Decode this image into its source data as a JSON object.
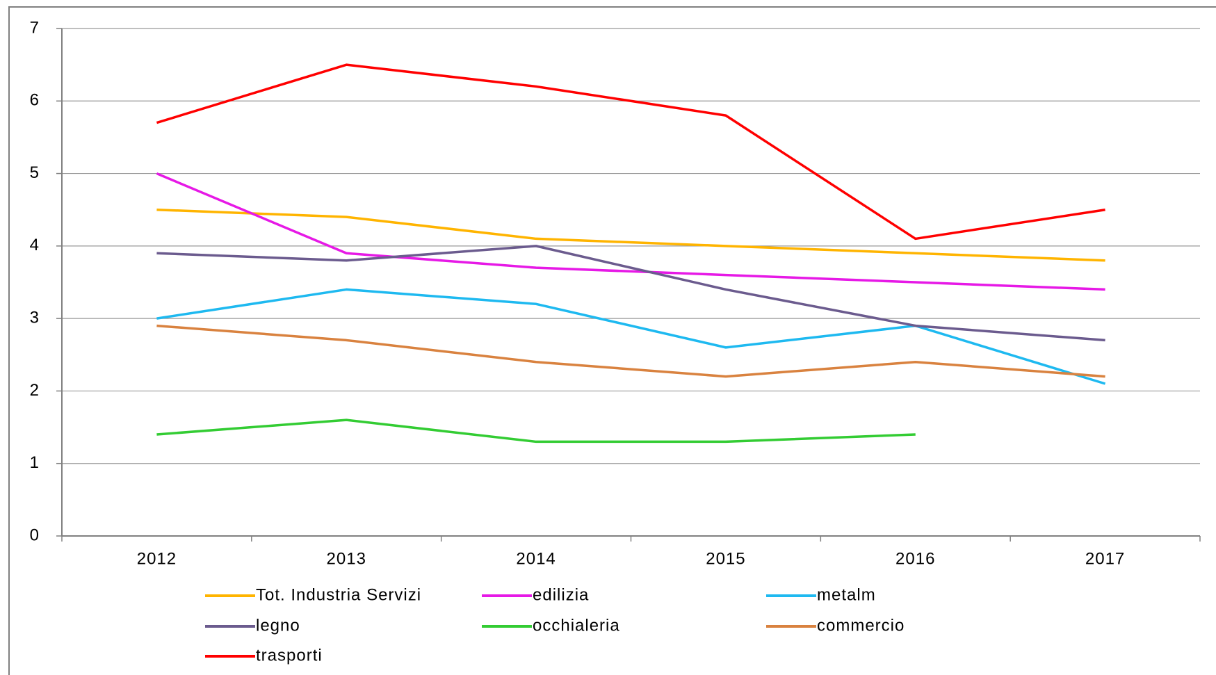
{
  "chart_data": {
    "type": "line",
    "categories": [
      "2012",
      "2013",
      "2014",
      "2015",
      "2016",
      "2017"
    ],
    "series": [
      {
        "name": "Tot. Industria Servizi",
        "color": "#FFB400",
        "values": [
          4.5,
          4.4,
          4.1,
          4.0,
          3.9,
          3.8
        ]
      },
      {
        "name": "edilizia",
        "color": "#E619E6",
        "values": [
          5.0,
          3.9,
          3.7,
          3.6,
          3.5,
          3.4
        ]
      },
      {
        "name": "metalm",
        "color": "#1EB9F0",
        "values": [
          3.0,
          3.4,
          3.2,
          2.6,
          2.9,
          2.1
        ]
      },
      {
        "name": "legno",
        "color": "#6B5B8E",
        "values": [
          3.9,
          3.8,
          4.0,
          3.4,
          2.9,
          2.7
        ]
      },
      {
        "name": "occhialeria",
        "color": "#33CC33",
        "values": [
          1.4,
          1.6,
          1.3,
          1.3,
          1.4,
          null
        ]
      },
      {
        "name": "commercio",
        "color": "#D9823F",
        "values": [
          2.9,
          2.7,
          2.4,
          2.2,
          2.4,
          2.2
        ]
      },
      {
        "name": "trasporti",
        "color": "#FF0000",
        "values": [
          5.7,
          6.5,
          6.2,
          5.8,
          4.1,
          4.5
        ]
      }
    ],
    "ylim": [
      0,
      7
    ],
    "yticks": [
      0,
      1,
      2,
      3,
      4,
      5,
      6,
      7
    ],
    "grid": true
  }
}
